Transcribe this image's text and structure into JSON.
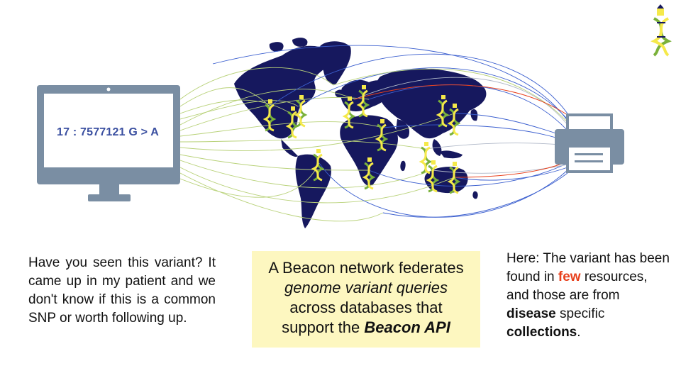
{
  "monitor": {
    "query": "17 : 7577121 G > A"
  },
  "left_caption": "Have you seen this variant? It came up in my patient and we don't know if this is a common SNP or worth following up.",
  "center_box": {
    "line1": "A Beacon network federates",
    "line2": "genome variant queries",
    "line3": "across databases that",
    "line4_prefix": "support the ",
    "line4_emph": "Beacon API"
  },
  "right_caption": {
    "p1": "Here: The variant has been found in ",
    "few": "few",
    "p2": " resources, and those are from ",
    "disease": "disease",
    "p3": " specific ",
    "collections": "collections",
    "p4": "."
  },
  "colors": {
    "monitor": "#7a8ea3",
    "map": "#16185e",
    "line_green": "#b9d27a",
    "line_blue": "#3b5fcf",
    "line_red": "#e8401c",
    "printer": "#7a8ea3",
    "highlight_box": "#fdf7c0",
    "dna_green": "#7ab13a",
    "dna_yellow": "#f5e94a"
  },
  "icons": [
    "monitor-icon",
    "world-map",
    "beacon-dna-icon",
    "printer-icon",
    "logo-dna-icon"
  ]
}
